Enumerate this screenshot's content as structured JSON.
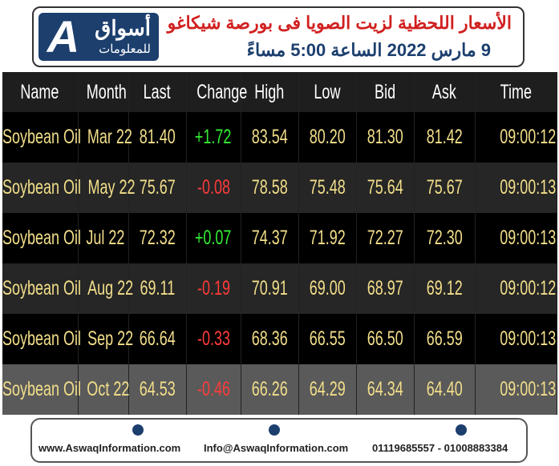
{
  "header": {
    "logo_mark": "A",
    "logo_name": "أسواق",
    "logo_sub": "للمعلومات",
    "title": "الأسعار اللحظية لزيت الصويا فى بورصة شيكاغو",
    "subtitle": "9 مارس 2022 الساعة 5:00 مساءً"
  },
  "table": {
    "columns": [
      "Name",
      "Month",
      "Last",
      "Change",
      "High",
      "Low",
      "Bid",
      "Ask",
      "Time"
    ],
    "rows": [
      [
        "Soybean Oil",
        "Mar 22",
        "81.40",
        "+1.72",
        "83.54",
        "80.20",
        "81.30",
        "81.42",
        "09:00:12"
      ],
      [
        "Soybean Oil",
        "May 22",
        "75.67",
        "-0.08",
        "78.58",
        "75.48",
        "75.64",
        "75.67",
        "09:00:13"
      ],
      [
        "Soybean Oil",
        "Jul 22",
        "72.32",
        "+0.07",
        "74.37",
        "71.92",
        "72.27",
        "72.30",
        "09:00:13"
      ],
      [
        "Soybean Oil",
        "Aug 22",
        "69.11",
        "-0.19",
        "70.91",
        "69.00",
        "68.97",
        "69.12",
        "09:00:12"
      ],
      [
        "Soybean Oil",
        "Sep 22",
        "66.64",
        "-0.33",
        "68.36",
        "66.55",
        "66.50",
        "66.59",
        "09:00:13"
      ],
      [
        "Soybean Oil",
        "Oct 22",
        "64.53",
        "-0.46",
        "66.26",
        "64.29",
        "64.34",
        "64.40",
        "09:00:13"
      ]
    ]
  },
  "footer": {
    "website": "www.AswaqInformation.com",
    "email": "Info@AswaqInformation.com",
    "phones": "01119685557 - 01008883384"
  }
}
